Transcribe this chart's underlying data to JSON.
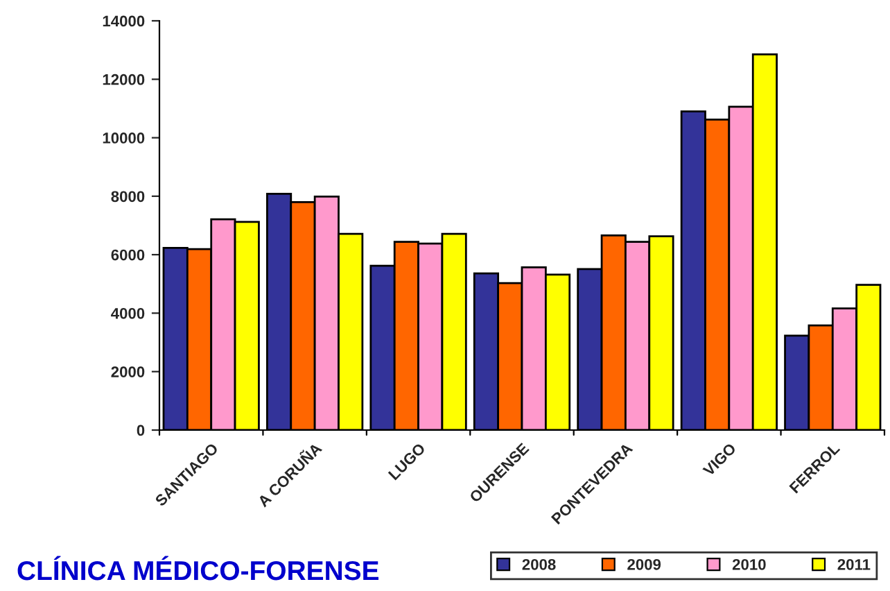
{
  "chart_data": {
    "type": "bar",
    "title": "CLÍNICA MÉDICO-FORENSE",
    "categories": [
      "SANTIAGO",
      "A CORUÑA",
      "LUGO",
      "OURENSE",
      "PONTEVEDRA",
      "VIGO",
      "FERROL"
    ],
    "series": [
      {
        "name": "2008",
        "color": "#333399",
        "values": [
          6230,
          8080,
          5620,
          5360,
          5510,
          10900,
          3230
        ]
      },
      {
        "name": "2009",
        "color": "#ff6600",
        "values": [
          6190,
          7800,
          6440,
          5030,
          6660,
          10620,
          3580
        ]
      },
      {
        "name": "2010",
        "color": "#ff99cc",
        "values": [
          7210,
          7990,
          6380,
          5570,
          6440,
          11060,
          4160
        ]
      },
      {
        "name": "2011",
        "color": "#ffff00",
        "values": [
          7120,
          6710,
          6710,
          5320,
          6630,
          12850,
          4970
        ]
      }
    ],
    "ylim": [
      0,
      14000
    ],
    "yticks": [
      0,
      2000,
      4000,
      6000,
      8000,
      10000,
      12000,
      14000
    ],
    "grid": false,
    "legend": "bottom right"
  }
}
